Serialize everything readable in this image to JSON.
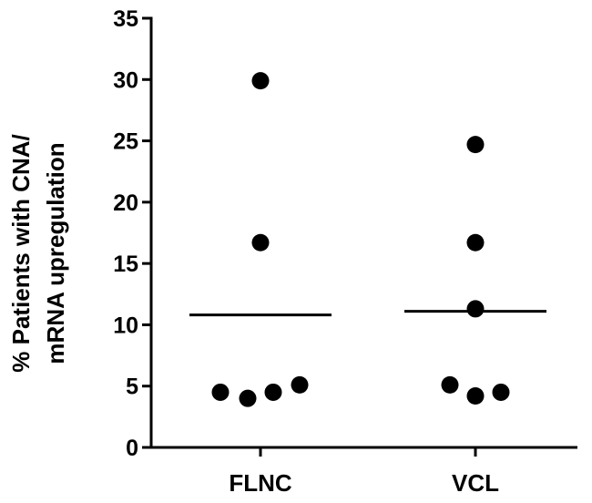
{
  "chart_data": {
    "type": "scatter",
    "ylabel_lines": [
      "% Patients with CNA/",
      "mRNA upregulation"
    ],
    "ylim": [
      0,
      35
    ],
    "yticks": [
      0,
      5,
      10,
      15,
      20,
      25,
      30,
      35
    ],
    "categories": [
      "FLNC",
      "VCL"
    ],
    "grid": false,
    "series": [
      {
        "category": "FLNC",
        "values": [
          29.9,
          16.7,
          4.5,
          4.0,
          4.5,
          5.1
        ],
        "mean": 10.8
      },
      {
        "category": "VCL",
        "values": [
          24.7,
          16.7,
          11.3,
          5.1,
          4.2,
          4.5
        ],
        "mean": 11.1
      }
    ],
    "point_color": "#000000"
  }
}
